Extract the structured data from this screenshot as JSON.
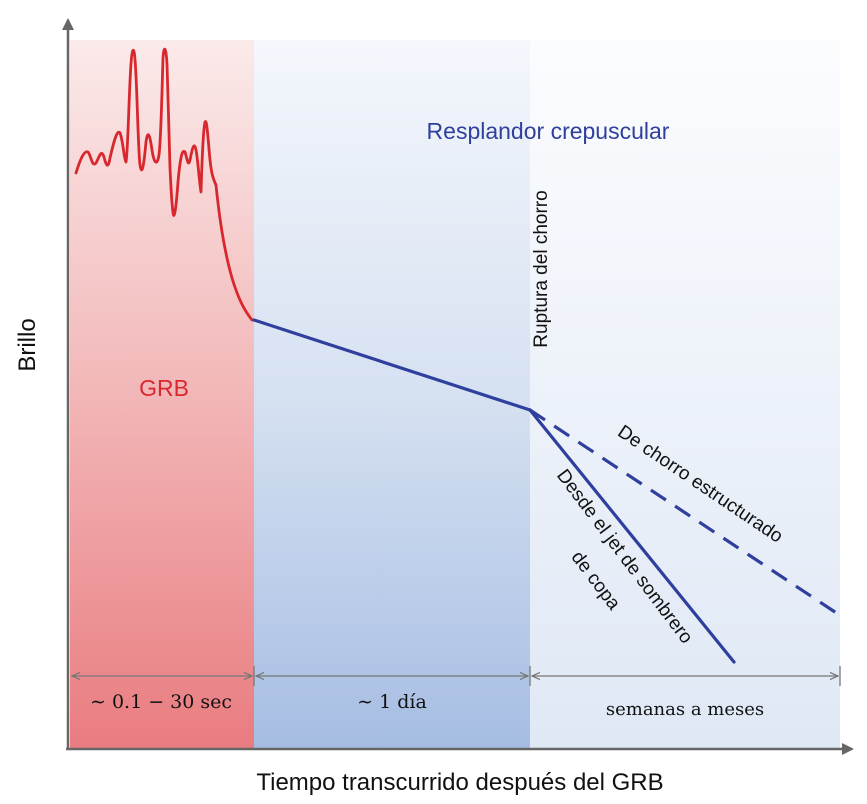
{
  "labels": {
    "y_axis": "Brillo",
    "x_axis": "Tiempo transcurrido después del GRB",
    "grb": "GRB",
    "afterglow": "Resplandor crepuscular",
    "jet_break": "Ruptura del chorro",
    "structured_jet": "De chorro estructurado",
    "top_hat_line1": "Desde el jet de sombrero",
    "top_hat_line2": "de copa"
  },
  "intervals": [
    {
      "label": "∼ 0.1 − 30 sec"
    },
    {
      "label": "∼ 1 día"
    },
    {
      "label": "semanas a meses"
    }
  ],
  "colors": {
    "grb": "#d8282e",
    "afterglow": "#2f3f9e",
    "axis": "#666666",
    "text": "#111111"
  }
}
